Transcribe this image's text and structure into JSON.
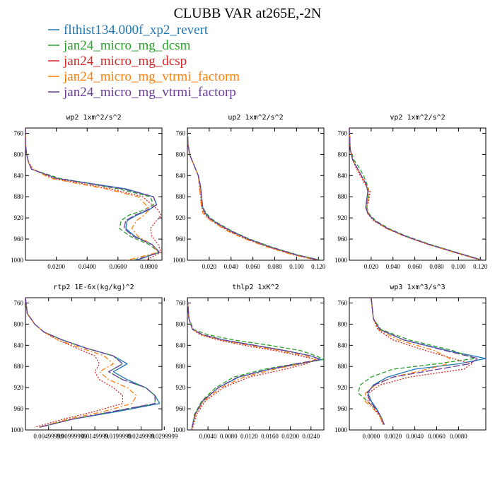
{
  "figure": {
    "title": "CLUBB VAR at265E,-2N",
    "legend": [
      {
        "label": "flthist134.000f_xp2_revert",
        "color": "#1f77b4",
        "dash": "solid"
      },
      {
        "label": "jan24_micro_mg_dcsm",
        "color": "#2ca02c",
        "dash": "dash"
      },
      {
        "label": "jan24_micro_mg_dcsp",
        "color": "#d62728",
        "dash": "dot"
      },
      {
        "label": "jan24_micro_mg_vtrmi_factorm",
        "color": "#ff7f0e",
        "dash": "dashdot"
      },
      {
        "label": "jan24_micro_mg_vtrmi_factorp",
        "color": "#6a3d9a",
        "dash": "longdash"
      }
    ]
  },
  "chart_data": [
    {
      "type": "line",
      "title": "wp2   1xm^2/s^2",
      "xlim": [
        0,
        0.0885
      ],
      "ylim": [
        1000,
        750
      ],
      "xticks": [
        0.02,
        0.04,
        0.06,
        0.08
      ],
      "xticklabels": [
        "0.0200",
        "0.0400",
        "0.0600",
        "0.0800"
      ],
      "yticks": [
        760,
        800,
        840,
        880,
        920,
        960,
        1000
      ],
      "y": [
        750,
        780,
        800,
        815,
        828,
        845,
        865,
        880,
        895,
        905,
        915,
        925,
        940,
        955,
        970,
        985,
        1000
      ],
      "series": [
        {
          "values": [
            0,
            0,
            0.0008,
            0.002,
            0.004,
            0.02,
            0.065,
            0.083,
            0.085,
            0.08,
            0.072,
            0.066,
            0.065,
            0.071,
            0.082,
            0.087,
            0.072
          ]
        },
        {
          "values": [
            0,
            0,
            0.0008,
            0.002,
            0.004,
            0.022,
            0.06,
            0.081,
            0.083,
            0.077,
            0.067,
            0.062,
            0.061,
            0.068,
            0.08,
            0.087,
            0.07
          ]
        },
        {
          "values": [
            0,
            0,
            0.0008,
            0.002,
            0.005,
            0.018,
            0.055,
            0.076,
            0.082,
            0.086,
            0.088,
            0.085,
            0.081,
            0.082,
            0.086,
            0.088,
            0.078
          ]
        },
        {
          "values": [
            0,
            0,
            0.0008,
            0.002,
            0.005,
            0.016,
            0.052,
            0.073,
            0.078,
            0.08,
            0.077,
            0.072,
            0.069,
            0.073,
            0.082,
            0.086,
            0.066
          ]
        },
        {
          "values": [
            0,
            0,
            0.0008,
            0.002,
            0.004,
            0.02,
            0.063,
            0.083,
            0.085,
            0.079,
            0.071,
            0.065,
            0.064,
            0.07,
            0.082,
            0.087,
            0.071
          ]
        }
      ]
    },
    {
      "type": "line",
      "title": "up2   1xm^2/s^2",
      "xlim": [
        0,
        0.125
      ],
      "ylim": [
        1000,
        750
      ],
      "xticks": [
        0.02,
        0.04,
        0.06,
        0.08,
        0.1,
        0.12
      ],
      "xticklabels": [
        "0.020",
        "0.040",
        "0.060",
        "0.080",
        "0.100",
        "0.120"
      ],
      "yticks": [
        760,
        800,
        840,
        880,
        920,
        960,
        1000
      ],
      "y": [
        750,
        780,
        800,
        820,
        840,
        860,
        880,
        900,
        910,
        920,
        930,
        945,
        960,
        975,
        990,
        1000
      ],
      "series": [
        {
          "values": [
            0,
            0.0005,
            0.002,
            0.006,
            0.01,
            0.012,
            0.013,
            0.014,
            0.016,
            0.02,
            0.027,
            0.04,
            0.056,
            0.076,
            0.1,
            0.122
          ]
        },
        {
          "values": [
            0,
            0.0005,
            0.002,
            0.006,
            0.01,
            0.012,
            0.013,
            0.014,
            0.017,
            0.021,
            0.028,
            0.041,
            0.057,
            0.077,
            0.101,
            0.122
          ]
        },
        {
          "values": [
            0,
            0.0005,
            0.002,
            0.006,
            0.01,
            0.011,
            0.012,
            0.013,
            0.015,
            0.019,
            0.026,
            0.038,
            0.054,
            0.074,
            0.098,
            0.12
          ]
        },
        {
          "values": [
            0,
            0.0005,
            0.002,
            0.006,
            0.01,
            0.011,
            0.012,
            0.013,
            0.014,
            0.018,
            0.025,
            0.037,
            0.053,
            0.073,
            0.097,
            0.119
          ]
        },
        {
          "values": [
            0,
            0.0005,
            0.002,
            0.006,
            0.01,
            0.012,
            0.013,
            0.014,
            0.016,
            0.02,
            0.027,
            0.04,
            0.056,
            0.076,
            0.1,
            0.121
          ]
        }
      ]
    },
    {
      "type": "line",
      "title": "vp2   1xm^2/s^2",
      "xlim": [
        0,
        0.125
      ],
      "ylim": [
        1000,
        750
      ],
      "xticks": [
        0.02,
        0.04,
        0.06,
        0.08,
        0.1,
        0.12
      ],
      "xticklabels": [
        "0.020",
        "0.040",
        "0.060",
        "0.080",
        "0.100",
        "0.120"
      ],
      "yticks": [
        760,
        800,
        840,
        880,
        920,
        960,
        1000
      ],
      "y": [
        750,
        790,
        810,
        825,
        840,
        855,
        870,
        885,
        900,
        912,
        925,
        940,
        955,
        970,
        985,
        1000
      ],
      "series": [
        {
          "values": [
            0,
            0.0008,
            0.003,
            0.007,
            0.011,
            0.015,
            0.017,
            0.016,
            0.015,
            0.017,
            0.023,
            0.035,
            0.052,
            0.073,
            0.097,
            0.122
          ]
        },
        {
          "values": [
            0,
            0.0008,
            0.004,
            0.009,
            0.013,
            0.016,
            0.018,
            0.017,
            0.016,
            0.018,
            0.024,
            0.036,
            0.053,
            0.074,
            0.098,
            0.122
          ]
        },
        {
          "values": [
            0,
            0.0008,
            0.003,
            0.006,
            0.01,
            0.014,
            0.019,
            0.018,
            0.016,
            0.017,
            0.022,
            0.034,
            0.051,
            0.072,
            0.096,
            0.121
          ]
        },
        {
          "values": [
            0,
            0.0008,
            0.003,
            0.007,
            0.011,
            0.015,
            0.018,
            0.017,
            0.016,
            0.017,
            0.023,
            0.034,
            0.051,
            0.072,
            0.096,
            0.12
          ]
        },
        {
          "values": [
            0,
            0.0008,
            0.003,
            0.007,
            0.011,
            0.015,
            0.017,
            0.016,
            0.015,
            0.017,
            0.023,
            0.035,
            0.052,
            0.073,
            0.097,
            0.122
          ]
        }
      ]
    },
    {
      "type": "line",
      "title": "rtp2   1E-6x(kg/kg)^2",
      "xlim": [
        0,
        0.0295
      ],
      "ylim": [
        1000,
        750
      ],
      "xticks": [
        0.005,
        0.01,
        0.015,
        0.02,
        0.025,
        0.03
      ],
      "xticklabels": [
        "0.00499999",
        "0.00999999",
        "0.0149999",
        "0.0199999",
        "0.0249999",
        "0.0299999"
      ],
      "yticks": [
        760,
        800,
        840,
        880,
        920,
        960,
        1000
      ],
      "y": [
        750,
        780,
        800,
        815,
        830,
        845,
        860,
        875,
        890,
        905,
        920,
        935,
        950,
        965,
        980,
        995
      ],
      "series": [
        {
          "values": [
            0,
            0.0004,
            0.002,
            0.004,
            0.008,
            0.013,
            0.019,
            0.022,
            0.019,
            0.022,
            0.026,
            0.028,
            0.029,
            0.02,
            0.01,
            0.003
          ]
        },
        {
          "values": [
            0,
            0.0004,
            0.002,
            0.004,
            0.008,
            0.013,
            0.019,
            0.021,
            0.018,
            0.021,
            0.026,
            0.028,
            0.028,
            0.019,
            0.01,
            0.003
          ]
        },
        {
          "values": [
            0,
            0.0004,
            0.002,
            0.004,
            0.007,
            0.011,
            0.015,
            0.016,
            0.015,
            0.016,
            0.019,
            0.021,
            0.021,
            0.015,
            0.008,
            0.002
          ]
        },
        {
          "values": [
            0,
            0.0004,
            0.002,
            0.004,
            0.007,
            0.012,
            0.017,
            0.019,
            0.016,
            0.018,
            0.022,
            0.024,
            0.023,
            0.017,
            0.009,
            0.003
          ]
        },
        {
          "values": [
            0,
            0.0004,
            0.002,
            0.004,
            0.008,
            0.013,
            0.019,
            0.021,
            0.018,
            0.021,
            0.026,
            0.028,
            0.028,
            0.019,
            0.01,
            0.003
          ]
        }
      ]
    },
    {
      "type": "line",
      "title": "thlp2   1xK^2",
      "xlim": [
        0,
        0.0265
      ],
      "ylim": [
        1000,
        750
      ],
      "xticks": [
        0.004,
        0.008,
        0.012,
        0.016,
        0.02,
        0.024
      ],
      "xticklabels": [
        "0.0040",
        "0.0080",
        "0.0120",
        "0.0160",
        "0.0200",
        "0.0240"
      ],
      "yticks": [
        760,
        800,
        840,
        880,
        920,
        960,
        1000
      ],
      "y": [
        750,
        790,
        810,
        820,
        830,
        840,
        850,
        860,
        867,
        875,
        885,
        900,
        920,
        945,
        970,
        1000
      ],
      "series": [
        {
          "values": [
            0,
            0.0003,
            0.001,
            0.003,
            0.007,
            0.013,
            0.019,
            0.024,
            0.026,
            0.022,
            0.016,
            0.01,
            0.006,
            0.003,
            0.0015,
            0.0008
          ]
        },
        {
          "values": [
            0,
            0.0003,
            0.0012,
            0.004,
            0.009,
            0.016,
            0.022,
            0.025,
            0.0265,
            0.021,
            0.015,
            0.009,
            0.0055,
            0.0028,
            0.0014,
            0.0008
          ]
        },
        {
          "values": [
            0,
            0.0003,
            0.001,
            0.0025,
            0.006,
            0.011,
            0.017,
            0.022,
            0.025,
            0.023,
            0.019,
            0.012,
            0.007,
            0.0035,
            0.0018,
            0.0009
          ]
        },
        {
          "values": [
            0,
            0.0003,
            0.001,
            0.0028,
            0.0065,
            0.012,
            0.018,
            0.023,
            0.025,
            0.022,
            0.017,
            0.011,
            0.0065,
            0.0032,
            0.0016,
            0.0008
          ]
        },
        {
          "values": [
            0,
            0.0003,
            0.001,
            0.003,
            0.007,
            0.013,
            0.019,
            0.024,
            0.0258,
            0.021,
            0.016,
            0.0098,
            0.006,
            0.003,
            0.0015,
            0.0008
          ]
        }
      ]
    },
    {
      "type": "line",
      "title": "wp3   1xm^3/s^3",
      "xlim": [
        -0.002,
        0.0105
      ],
      "ylim": [
        1000,
        750
      ],
      "xticks": [
        0,
        0.002,
        0.004,
        0.006,
        0.008
      ],
      "xticklabels": [
        "0.0000",
        "0.0020",
        "0.0040",
        "0.0060",
        "0.0080"
      ],
      "yticks": [
        760,
        800,
        840,
        880,
        920,
        960,
        1000
      ],
      "y": [
        750,
        790,
        810,
        830,
        850,
        865,
        875,
        885,
        900,
        915,
        930,
        945,
        960,
        975,
        990
      ],
      "series": [
        {
          "values": [
            0,
            0.0002,
            0.0008,
            0.003,
            0.007,
            0.0105,
            0.008,
            0.004,
            0.0015,
            0.0002,
            -0.0003,
            0,
            0.0005,
            0.0009,
            0.0012
          ]
        },
        {
          "values": [
            0,
            0.0002,
            0.0009,
            0.0035,
            0.0075,
            0.0095,
            0.006,
            0.002,
            0.0,
            -0.001,
            -0.0012,
            -0.0004,
            0.0004,
            0.0009,
            0.0012
          ]
        },
        {
          "values": [
            0,
            0.0002,
            0.0006,
            0.002,
            0.005,
            0.0075,
            0.0092,
            0.0085,
            0.0035,
            0.0008,
            -0.0002,
            -0.0003,
            0.0003,
            0.0008,
            0.0011
          ]
        },
        {
          "values": [
            0,
            0.0002,
            0.0007,
            0.0025,
            0.0058,
            0.0072,
            0.007,
            0.0052,
            0.002,
            0.0004,
            -0.0005,
            -0.0006,
            0.0002,
            0.0008,
            0.0011
          ]
        },
        {
          "values": [
            0,
            0.0002,
            0.0008,
            0.003,
            0.0068,
            0.0098,
            0.009,
            0.0062,
            0.002,
            0.0003,
            -0.0004,
            -0.0001,
            0.0004,
            0.0009,
            0.0012
          ]
        }
      ]
    }
  ]
}
